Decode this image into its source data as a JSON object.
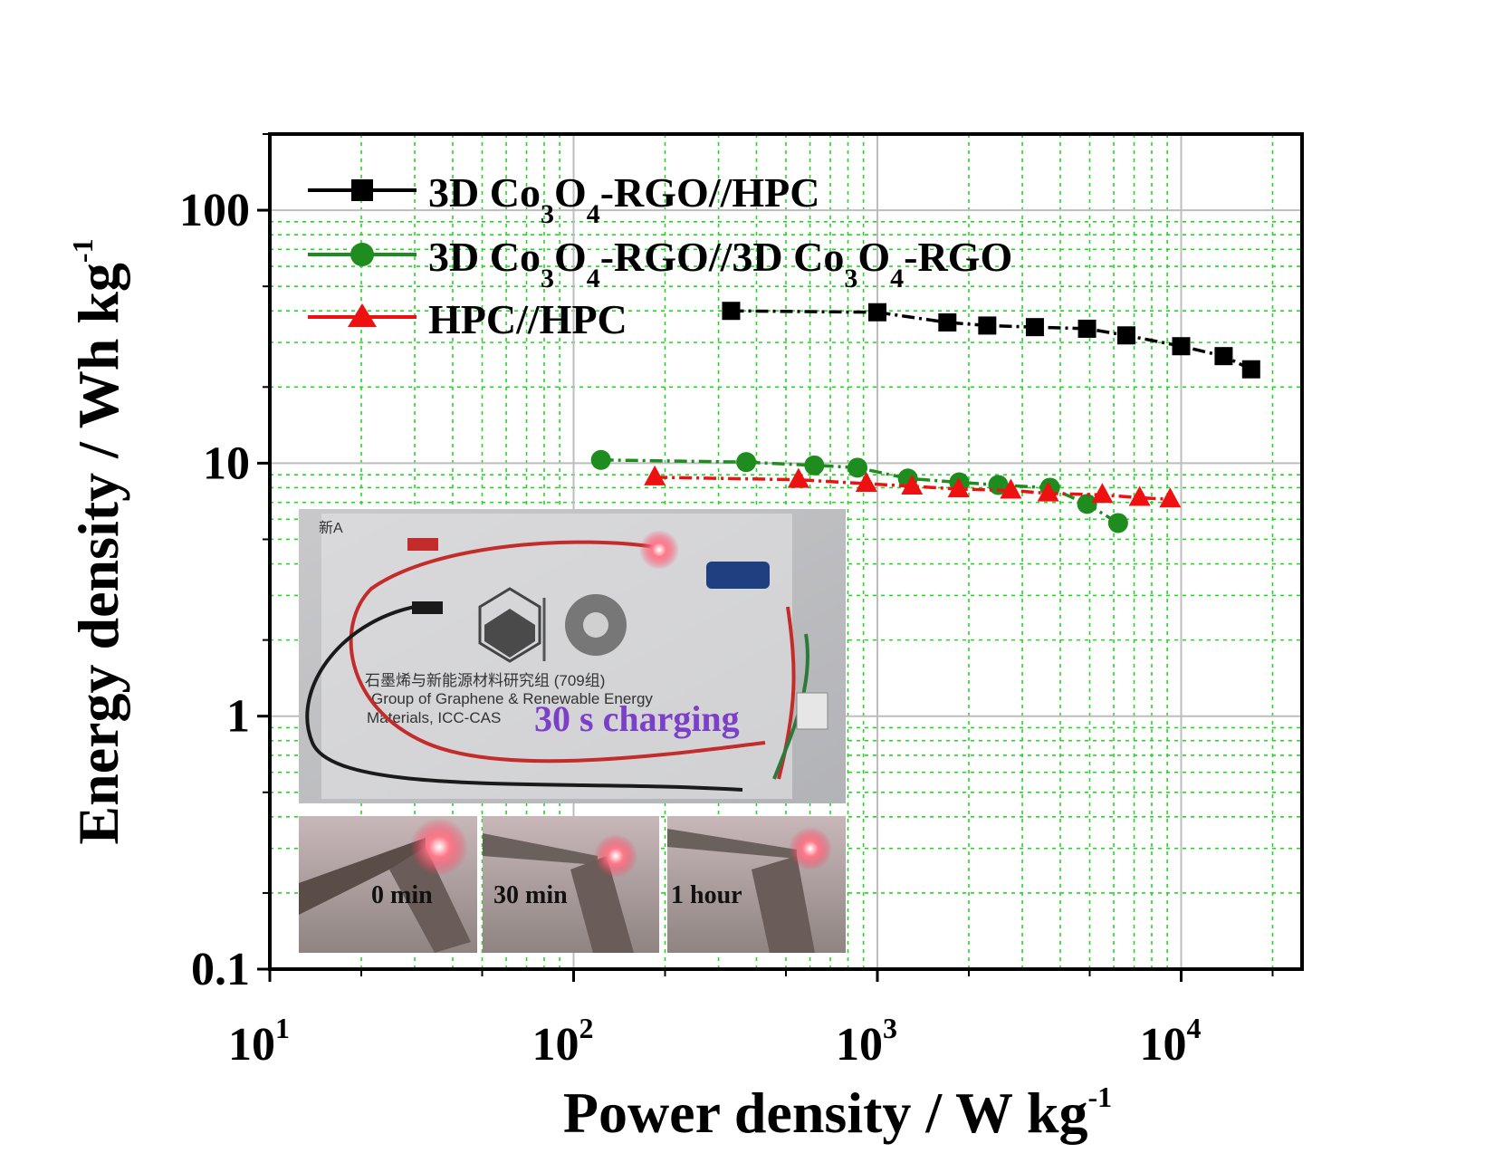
{
  "chart_data": {
    "type": "scatter",
    "xscale": "log",
    "yscale": "log",
    "xlabel": "Power density / W kg",
    "xlabel_sup": "-1",
    "ylabel": "Energy density / Wh kg",
    "ylabel_sup": "-1",
    "xlim": [
      10,
      25000
    ],
    "ylim": [
      0.1,
      200
    ],
    "grid": true,
    "legend_position": "top-left",
    "x_ticks": [
      {
        "value": 10,
        "base": "10",
        "exp": "1"
      },
      {
        "value": 100,
        "base": "10",
        "exp": "2"
      },
      {
        "value": 1000,
        "base": "10",
        "exp": "3"
      },
      {
        "value": 10000,
        "base": "10",
        "exp": "4"
      }
    ],
    "y_ticks": [
      {
        "value": 0.1,
        "label": "0.1"
      },
      {
        "value": 1,
        "label": "1"
      },
      {
        "value": 10,
        "label": "10"
      },
      {
        "value": 100,
        "label": "100"
      }
    ],
    "series": [
      {
        "name": "3D Co3O4-RGO//HPC",
        "color": "#000000",
        "marker": "square",
        "x": [
          330,
          1000,
          1700,
          2300,
          3300,
          4900,
          6600,
          10000,
          13800,
          17000
        ],
        "y": [
          40,
          39.5,
          36,
          35,
          34.5,
          34,
          32,
          29,
          26.5,
          23.5
        ]
      },
      {
        "name": "3D Co3O4-RGO//3D Co3O4-RGO",
        "color": "#1e8c1e",
        "marker": "circle",
        "x": [
          123,
          370,
          620,
          860,
          1260,
          1860,
          2500,
          3700,
          4900,
          6200
        ],
        "y": [
          10.3,
          10.1,
          9.8,
          9.6,
          8.7,
          8.4,
          8.2,
          8.0,
          6.9,
          5.8
        ]
      },
      {
        "name": "HPC//HPC",
        "color": "#ee1111",
        "marker": "triangle",
        "x": [
          185,
          550,
          920,
          1300,
          1850,
          2750,
          3650,
          5500,
          7300,
          9200
        ],
        "y": [
          8.8,
          8.6,
          8.3,
          8.1,
          7.9,
          7.8,
          7.6,
          7.5,
          7.3,
          7.2
        ]
      }
    ]
  },
  "legend": [
    {
      "parts": [
        "3D Co",
        "3",
        "O",
        "4",
        "-RGO//HPC"
      ]
    },
    {
      "parts": [
        "3D Co",
        "3",
        "O",
        "4",
        "-RGO//3D Co",
        "3",
        "O",
        "4",
        "-RGO"
      ]
    },
    {
      "parts": [
        "HPC//HPC"
      ]
    }
  ],
  "inset": {
    "main_caption": "30 s charging",
    "corner_note": "新A",
    "card_line1": "石墨烯与新能源材料研究组 (709组)",
    "card_line2": "Group of Graphene & Renewable Energy",
    "card_line3": "Materials, ICC-CAS",
    "panels": [
      "0 min",
      "30 min",
      "1 hour"
    ]
  }
}
